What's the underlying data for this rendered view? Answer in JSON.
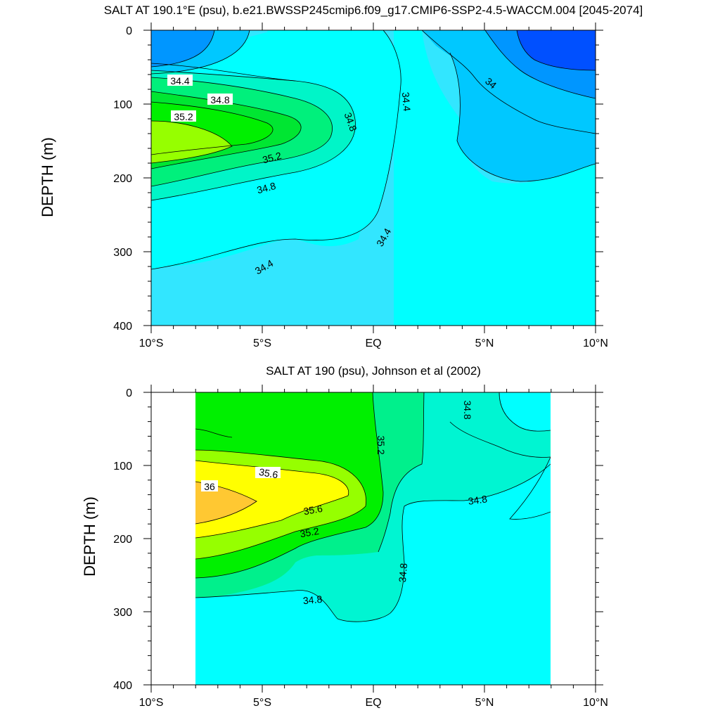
{
  "chart_data": [
    {
      "type": "contour",
      "title": "SALT AT 190.1°E (psu), b.e21.BWSSP245cmip6.f09_g17.CMIP6-SSP2-4.5-WACCM.004 [2045-2074]",
      "ylabel": "DEPTH (m)",
      "xlabel": "",
      "xlim": [
        -10,
        10
      ],
      "ylim": [
        0,
        400
      ],
      "y_inverted": true,
      "x_ticks": [
        {
          "value": -10,
          "label": "10°S"
        },
        {
          "value": -5,
          "label": "5°S"
        },
        {
          "value": 0,
          "label": "EQ"
        },
        {
          "value": 5,
          "label": "5°N"
        },
        {
          "value": 10,
          "label": "10°N"
        }
      ],
      "y_ticks": [
        {
          "value": 0,
          "label": "0"
        },
        {
          "value": 100,
          "label": "100"
        },
        {
          "value": 200,
          "label": "200"
        },
        {
          "value": 300,
          "label": "300"
        },
        {
          "value": 400,
          "label": "400"
        }
      ],
      "contour_levels": [
        33.8,
        34.0,
        34.2,
        34.4,
        34.6,
        34.8,
        35.0,
        35.2,
        35.4
      ],
      "labeled_contours": [
        {
          "text": "34.4",
          "x": -8.2,
          "y": 72
        },
        {
          "text": "34.8",
          "x": -6.9,
          "y": 96
        },
        {
          "text": "35.2",
          "x": -8.4,
          "y": 118
        },
        {
          "text": "35.2",
          "x": -4.6,
          "y": 172
        },
        {
          "text": "34.8",
          "x": -4.9,
          "y": 218
        },
        {
          "text": "34.4",
          "x": -5.2,
          "y": 328
        },
        {
          "text": "34.8",
          "x": -1.2,
          "y": 125
        },
        {
          "text": "34.4",
          "x": 1.3,
          "y": 97
        },
        {
          "text": "34.4",
          "x": 0.5,
          "y": 290
        },
        {
          "text": "34",
          "x": 5.2,
          "y": 74
        }
      ],
      "colors": {
        "lt_33_8": "#0050ff",
        "33_8_to_34_0": "#0096ff",
        "34_0_to_34_2": "#00c8ff",
        "34_2_to_34_4": "#32e6ff",
        "34_4_to_34_6": "#00ffff",
        "34_6_to_34_8": "#00f5c8",
        "34_8_to_35_0": "#00f07c",
        "35_0_to_35_2": "#00e632",
        "35_2_to_35_4": "#00f000",
        "gt_35_4": "#96ff00"
      }
    },
    {
      "type": "contour",
      "title": "SALT AT 190 (psu), Johnson et al (2002)",
      "ylabel": "DEPTH (m)",
      "xlabel": "",
      "xlim": [
        -10,
        10
      ],
      "ylim": [
        0,
        400
      ],
      "y_inverted": true,
      "data_x_extent": [
        -8,
        8
      ],
      "x_ticks": [
        {
          "value": -10,
          "label": "10°S"
        },
        {
          "value": -5,
          "label": "5°S"
        },
        {
          "value": 0,
          "label": "EQ"
        },
        {
          "value": 5,
          "label": "5°N"
        },
        {
          "value": 10,
          "label": "10°N"
        }
      ],
      "y_ticks": [
        {
          "value": 0,
          "label": "0"
        },
        {
          "value": 100,
          "label": "100"
        },
        {
          "value": 200,
          "label": "200"
        },
        {
          "value": 300,
          "label": "300"
        },
        {
          "value": 400,
          "label": "400"
        }
      ],
      "contour_levels": [
        34.6,
        34.8,
        35.0,
        35.2,
        35.4,
        35.6,
        35.8,
        36.0
      ],
      "labeled_contours": [
        {
          "text": "34.8",
          "x": 4.1,
          "y": 28
        },
        {
          "text": "35.2",
          "x": 0.2,
          "y": 72
        },
        {
          "text": "35.6",
          "x": -4.7,
          "y": 112
        },
        {
          "text": "36",
          "x": -7.4,
          "y": 132
        },
        {
          "text": "35.6",
          "x": -2.7,
          "y": 163
        },
        {
          "text": "35.2",
          "x": -2.9,
          "y": 192
        },
        {
          "text": "34.8",
          "x": 4.7,
          "y": 152
        },
        {
          "text": "34.8",
          "x": 1.4,
          "y": 245
        },
        {
          "text": "34.8",
          "x": -2.7,
          "y": 288
        }
      ],
      "colors": {
        "34_6_to_34_8": "#00ffff",
        "34_8_to_35_0": "#00f5d2",
        "35_0_to_35_2": "#00f08c",
        "35_2_to_35_4": "#00f000",
        "35_4_to_35_6": "#96ff00",
        "35_6_to_35_8": "#ffff00",
        "35_8_to_36_0": "#ffe632",
        "gt_36_0": "#ffc832"
      }
    }
  ]
}
